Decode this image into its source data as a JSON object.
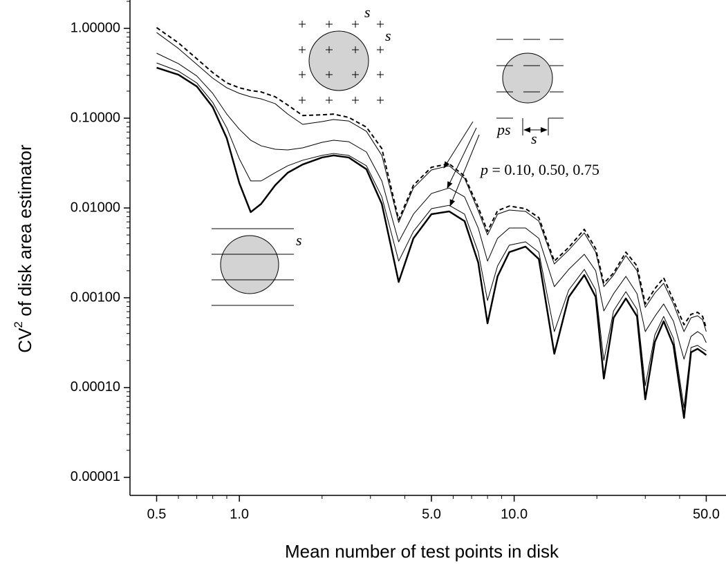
{
  "chart_data": {
    "type": "line",
    "xlabel": "Mean number of test points in disk",
    "ylabel": [
      "CV",
      "2",
      " of disk area estimator"
    ],
    "annotations": [
      "s",
      "s",
      "s",
      [
        "p",
        " = 0.10, 0.50, 0.75"
      ],
      "ps",
      "s"
    ],
    "log_x": true,
    "log_y": true,
    "grid": false,
    "xlim": [
      0.4,
      59
    ],
    "ylim": [
      6.3e-06,
      2.07
    ],
    "xticks": [
      0.5,
      {
        "value": 1,
        "label": "1.0"
      },
      {
        "value": 5,
        "label": "5.0"
      },
      {
        "value": 10,
        "label": "10.0"
      },
      {
        "value": 50,
        "label": "50.0"
      }
    ],
    "xminorticks": [
      0.6,
      0.7,
      0.8,
      0.9,
      2,
      3,
      4,
      6,
      7,
      8,
      9,
      20,
      30,
      40
    ],
    "yticks": [
      {
        "value": 1,
        "label": "1.00000"
      },
      {
        "value": 0.1,
        "label": "0.10000"
      },
      {
        "value": 0.01,
        "label": "0.01000"
      },
      {
        "value": 0.001,
        "label": "0.00100"
      },
      {
        "value": 0.0001,
        "label": "0.00010"
      },
      {
        "value": 1e-05,
        "label": "0.00001"
      }
    ],
    "yminorticks": [
      2e-05,
      3e-05,
      4e-05,
      5e-05,
      6e-05,
      7e-05,
      8e-05,
      9e-05,
      0.0002,
      0.0003,
      0.0004,
      0.0005,
      0.0006,
      0.0007,
      0.0008,
      0.0009,
      0.002,
      0.003,
      0.004,
      0.005,
      0.006,
      0.007,
      0.008,
      0.009,
      0.02,
      0.03,
      0.04,
      0.05,
      0.06,
      0.07,
      0.08,
      0.09,
      0.2,
      0.3,
      0.4,
      0.5,
      0.6,
      0.7,
      0.8,
      0.9,
      2
    ],
    "x": [
      0.5,
      0.6,
      0.7,
      0.8,
      0.9,
      1.0,
      1.1,
      1.2,
      1.35,
      1.5,
      1.7,
      2.0,
      2.2,
      2.5,
      2.9,
      3.3,
      3.8,
      4.3,
      5.0,
      5.8,
      6.6,
      7.4,
      8.0,
      8.7,
      9.6,
      11.0,
      12.3,
      14.0,
      15.8,
      18.0,
      19.8,
      21.2,
      23,
      25.5,
      28,
      30,
      32.5,
      35,
      38,
      41.5,
      44,
      46.5,
      48.5,
      50
    ],
    "series": [
      {
        "color": "#000000",
        "line_style": "dashed",
        "line_width": 2,
        "values": [
          1.02,
          0.69,
          0.459,
          0.322,
          0.247,
          0.218,
          0.203,
          0.196,
          0.173,
          0.14,
          0.107,
          0.109,
          0.111,
          0.102,
          0.0794,
          0.0459,
          0.0074,
          0.0179,
          0.0284,
          0.0311,
          0.0226,
          0.0102,
          0.00548,
          0.00931,
          0.0105,
          0.00982,
          0.0078,
          0.00256,
          0.00364,
          0.00578,
          0.00352,
          0.00145,
          0.00189,
          0.00322,
          0.00226,
          0.000853,
          0.00126,
          0.00167,
          0.000931,
          0.000501,
          0.000654,
          0.000689,
          0.00062,
          0.000459
        ]
      },
      {
        "color": "#000000",
        "line_style": "solid",
        "line_width": 1,
        "values": [
          0.899,
          0.598,
          0.398,
          0.279,
          0.218,
          0.189,
          0.173,
          0.164,
          0.145,
          0.111,
          0.0853,
          0.0916,
          0.0966,
          0.0931,
          0.0714,
          0.0385,
          0.00689,
          0.0167,
          0.0265,
          0.0295,
          0.0214,
          0.00931,
          0.00501,
          0.00853,
          0.00948,
          0.00916,
          0.00714,
          0.00238,
          0.0034,
          0.00528,
          0.00322,
          0.00133,
          0.00179,
          0.00295,
          0.002,
          0.00078,
          0.00113,
          0.00145,
          0.000853,
          0.00042,
          0.000598,
          0.000631,
          0.000568,
          0.00042
        ]
      },
      {
        "color": "#000000",
        "line_style": "solid",
        "line_width": 1,
        "values": [
          0.529,
          0.405,
          0.295,
          0.189,
          0.111,
          0.0753,
          0.0568,
          0.0492,
          0.0451,
          0.0443,
          0.0467,
          0.0538,
          0.0568,
          0.0547,
          0.042,
          0.02,
          0.0042,
          0.00853,
          0.0145,
          0.0167,
          0.0133,
          0.00598,
          0.00256,
          0.00459,
          0.00598,
          0.00598,
          0.00459,
          0.00133,
          0.00207,
          0.00305,
          0.002,
          0.000714,
          0.00111,
          0.00173,
          0.00111,
          0.00042,
          0.00062,
          0.000853,
          0.000547,
          0.000207,
          0.000371,
          0.00042,
          0.000385,
          0.000316
        ]
      },
      {
        "color": "#000000",
        "line_style": "solid",
        "line_width": 1,
        "values": [
          0.412,
          0.334,
          0.247,
          0.15,
          0.078,
          0.0352,
          0.02,
          0.02,
          0.0247,
          0.0295,
          0.034,
          0.0385,
          0.0405,
          0.0385,
          0.0295,
          0.0133,
          0.00256,
          0.00548,
          0.00982,
          0.0107,
          0.00853,
          0.00322,
          0.000931,
          0.00226,
          0.00385,
          0.0042,
          0.00322,
          0.00042,
          0.00122,
          0.00207,
          0.00122,
          0.0002,
          0.000714,
          0.00117,
          0.00074,
          0.000105,
          0.000385,
          0.00062,
          0.000352,
          5.98e-05,
          0.000279,
          0.000295,
          0.00027,
          0.000256
        ]
      },
      {
        "color": "#000000",
        "line_style": "solid",
        "line_width": 2.5,
        "values": [
          0.365,
          0.305,
          0.226,
          0.133,
          0.0598,
          0.0189,
          0.00899,
          0.0111,
          0.0179,
          0.0247,
          0.0305,
          0.0365,
          0.0385,
          0.0365,
          0.027,
          0.0111,
          0.0015,
          0.00459,
          0.00853,
          0.00916,
          0.00714,
          0.00247,
          0.000519,
          0.00173,
          0.00322,
          0.00371,
          0.0027,
          0.000238,
          0.00102,
          0.00179,
          0.00102,
          0.000126,
          0.000598,
          0.000982,
          0.00062,
          7.4e-05,
          0.000322,
          0.000547,
          0.000295,
          4.59e-05,
          0.000247,
          0.00027,
          0.000247,
          0.00023
        ]
      }
    ]
  }
}
